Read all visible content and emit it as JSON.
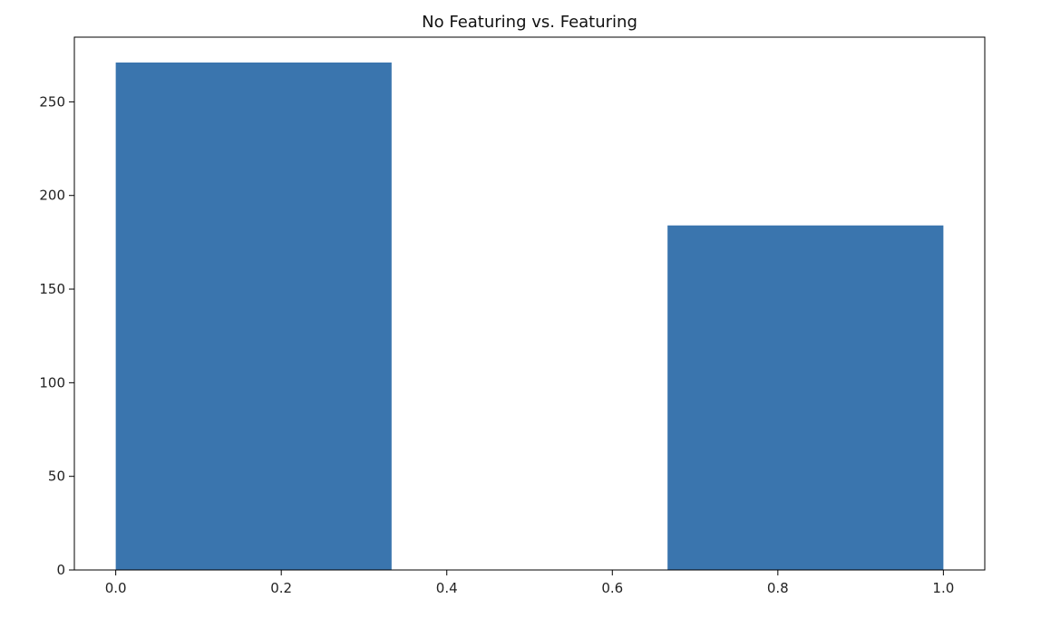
{
  "chart_data": {
    "type": "bar",
    "title": "No Featuring vs. Featuring",
    "xlabel": "",
    "ylabel": "",
    "bins": [
      {
        "x0": 0.0,
        "x1": 0.3333,
        "value": 271
      },
      {
        "x0": 0.3333,
        "x1": 0.6667,
        "value": 0
      },
      {
        "x0": 0.6667,
        "x1": 1.0,
        "value": 184
      }
    ],
    "xlim": [
      -0.05,
      1.05
    ],
    "ylim": [
      0,
      284.55
    ],
    "xticks": [
      0.0,
      0.2,
      0.4,
      0.6,
      0.8,
      1.0
    ],
    "xtick_labels": [
      "0.0",
      "0.2",
      "0.4",
      "0.6",
      "0.8",
      "1.0"
    ],
    "yticks": [
      0,
      50,
      100,
      150,
      200,
      250
    ],
    "ytick_labels": [
      "0",
      "50",
      "100",
      "150",
      "200",
      "250"
    ],
    "grid": false,
    "legend": "none",
    "bar_color": "#3a75ae"
  }
}
